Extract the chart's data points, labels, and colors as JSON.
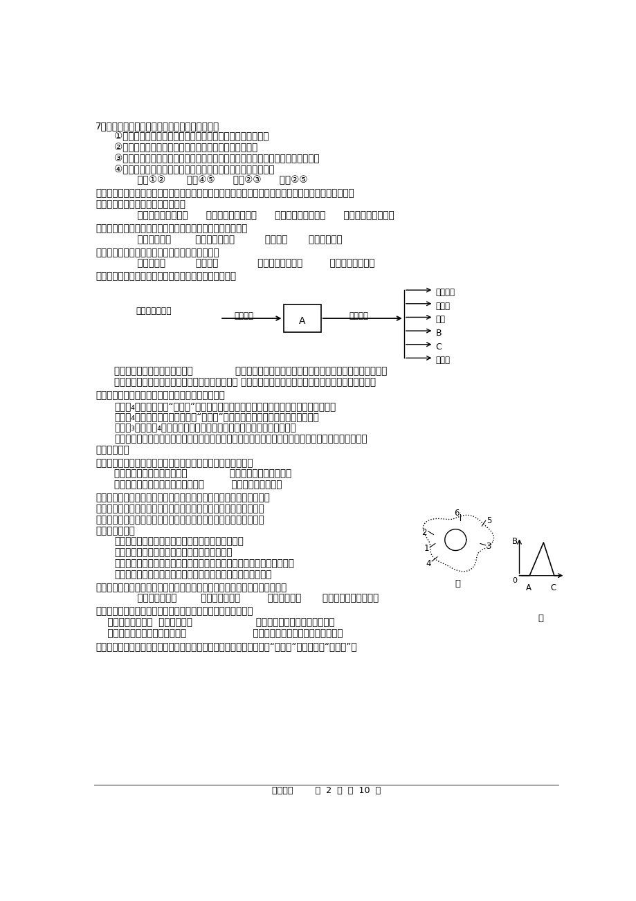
{
  "background_color": "#ffffff",
  "text_color": "#000000",
  "footer_text": "生物试卷        第  2  页  共  10  页",
  "q7_main": "7、下列有关光合作用光反应的说法中，正确的是",
  "q7_1": "①叶绿素ａ失去电子即成为强氧化剂，失去的电子将转移给水",
  "q7_2": "②电能转化的活跃化学能可储存在ＡＴＰ和ＮＡＤＰＨ中",
  "q7_3": "③不同季节将光能转化为电能的色素不同，叶子变黄后主要是依赖叶黄素进行转化",
  "q7_4": "④光照条件下某些叶绿素ａ能不断丢失和获得电子而形成电子流",
  "q7_opt": "    Ａ．①②       Ｂ．④⑤      Ｃ．②③      Ｄ．②⑤",
  "q8_main": "８、原核生物中某一基因的编码区起始端减少了一个碘基对。在缺失位点的附近，再发生下列哪种情况有",
  "q8_main2": "可能对其编码的蛋白质结构影响最小",
  "q8_opt": "    Ａ．置换单个碘基对      Ｂ．增加４个碘基对      Ｃ．缺失３个碘基对      Ｄ．缺失４个碘基对",
  "q9_main": "９、下列生物技术中，可以克服植物杂交的远缘不亲和性的是",
  "q9_opt": "    Ａ．细胞融合        Ｂ．单倍体育种          Ｃ．克隆       Ｄ．组织培养",
  "q10_main": "１０、下列除什么性状外，均由细菌质粒基因控制",
  "q10_opt": "    Ａ．抗药性          Ｂ．固氮             Ｃ．抗生素的合成         Ｄ．呼吸酶的合成",
  "q11_main": "１１、下图为人体体温调节示意图．相关叙述不正确的是",
  "q11_a": "Ａ．Ａ为下丘脑，体温调节中枢              Ｂ．人体受到寒冷刺激时，Ｂ骨骼肌会不自主战栗，热量增加",
  "q11_c": "Ｃ．Ｃ分泌的肾上腺素与甲状腺激素具有协同作用 Ｄ．在炎热环境时，人体主要通过减少产热来调节体温",
  "q12_main": "１２、下列有关光合作用和生物固氮的叙述正确的是",
  "q12_a": "Ａ．Ｃ₄植物叶片内呈“花环型”的两圈细胞，由外到内依次是部分叶肉细胞和维管束细胞",
  "q12_b": "Ｂ．Ｃ₄植物进行光合作用时，呈“花环型”的两圈细胞，只有内层细胞能合成淡粉",
  "q12_c": "Ｃ．Ｃ₃植物和Ｃ₄植物细胞内的所有叶绻色素都能吸收、传递和转换光能",
  "q12_d1": "Ｄ．豆科植物与根瘤菌的互利共生关系主要体现在豆科植物从根瘤菌获得含氮有机物，根瘤菌从豆科植",
  "q12_d2": "物获得葡萄糖",
  "q13_main": "１３、细胞质基因与细胞核基因比较，细胞质基因特有的特点是",
  "q13_a": "Ａ．具有控制相对性状的基因              Ｂ．基因按分离定律遗传",
  "q13_c": "Ｃ．基因结构分为编码区和非编码区         Ｄ．基因不均等分配",
  "q14_main1": "１４、研究表明在人体细胞免疫过程中，效应Ｔ细胞能够分泌一种称为",
  "q14_main2": "穿孔素的蛋白质。穿孔素可将被病毒感染的细胞或肿瘤细胞的膜溶解",
  "q14_main3": "而形成孔洞，导致这些靖细胞解体死亡。下列与这一免疫过程有关的",
  "q14_main4": "说法不正确的是",
  "q14_a": "Ａ．效应Ｔ细胞识别靖细胞与细胞膜上的糖蛋白有关",
  "q14_b": "Ｂ．效应Ｔ细胞分泌穿孔素的过程属于效应阶段",
  "q14_c": "Ｃ．穿孔素的合成及分泌需依次经过甲图中４、３、１、２、６等细胞器",
  "q14_d": "Ｄ．经抗原刺激后，体内穿孔素含量随时间的变化可用乙图表示",
  "q15_main": "１５、在离体的植物器官、组织或细胞脱分化形成愈伤组织的过程中，不需要",
  "q15_opt": "    Ａ．充足的光照        Ｂ．适宜的温度         Ｃ．消毒灭菌       Ｄ．适宜的养料和激素",
  "q16_main": "１６、大熊猫身体不同的组织细胞中所含的ＤＮＡ和ＢＮＡ是：",
  "q16_a": "    Ａ．ＤＮＡ相同，  ＢＮＡ也相同                     Ｂ．ＤＮＡ相同，ＢＮＡ不相同",
  "q16_c": "    Ｃ．ＤＮＡ不相同，ＢＮＡ相同                      Ｄ．ＤＮＡ不相同，ＢＮＡ也不相同",
  "q17_main": "１７、科研人员采用基因工程技术将人胰岛素基因导入大肠杆菌，获得“工程菌”。通过对该“工程菌”大"
}
